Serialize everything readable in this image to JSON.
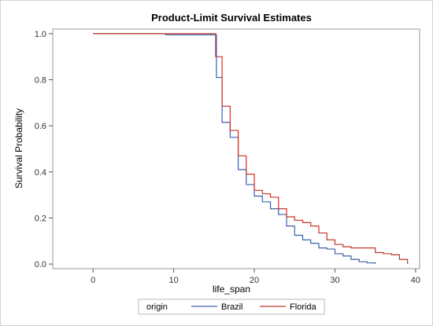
{
  "chart_data": {
    "type": "line",
    "title": "Product-Limit Survival Estimates",
    "xlabel": "life_span",
    "ylabel": "Survival Probability",
    "xlim": [
      -5,
      40.5
    ],
    "ylim": [
      -0.02,
      1.02
    ],
    "xticks": [
      0,
      10,
      20,
      30,
      40
    ],
    "yticks": [
      0.0,
      0.2,
      0.4,
      0.6,
      0.8,
      1.0
    ],
    "ytick_labels": [
      "0.0",
      "0.2",
      "0.4",
      "0.6",
      "0.8",
      "1.0"
    ],
    "legend": {
      "title": "origin",
      "placement": "bottom"
    },
    "series": [
      {
        "name": "Brazil",
        "color": "#3f5fa8",
        "step": true,
        "x": [
          0,
          9,
          15.3,
          16,
          17,
          18,
          19,
          20,
          21,
          22,
          23,
          24,
          25,
          26,
          27,
          28,
          29,
          30,
          31,
          32,
          33,
          34,
          35
        ],
        "y": [
          1.0,
          0.995,
          0.81,
          0.615,
          0.55,
          0.41,
          0.345,
          0.295,
          0.27,
          0.24,
          0.215,
          0.165,
          0.125,
          0.105,
          0.09,
          0.07,
          0.065,
          0.045,
          0.035,
          0.02,
          0.01,
          0.005,
          0.0
        ]
      },
      {
        "name": "Florida",
        "color": "#c0392b",
        "step": true,
        "x": [
          0,
          15.2,
          16,
          17,
          18,
          19,
          20,
          21,
          22,
          23,
          24,
          25,
          26,
          27,
          28,
          29,
          30,
          31,
          32,
          33,
          34,
          35,
          36,
          37,
          38,
          39
        ],
        "y": [
          1.0,
          0.9,
          0.685,
          0.58,
          0.47,
          0.39,
          0.32,
          0.305,
          0.29,
          0.24,
          0.205,
          0.19,
          0.18,
          0.165,
          0.135,
          0.105,
          0.085,
          0.075,
          0.07,
          0.07,
          0.07,
          0.05,
          0.045,
          0.04,
          0.02,
          0.0
        ]
      }
    ]
  }
}
